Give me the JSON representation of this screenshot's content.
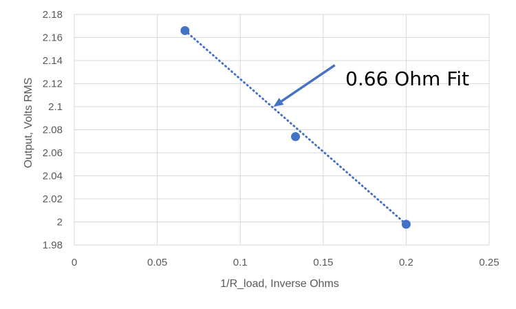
{
  "chart_data": {
    "type": "scatter",
    "xlabel": "1/R_load, Inverse Ohms",
    "ylabel": "Output, Volts RMS",
    "xlim": [
      0,
      0.25
    ],
    "ylim": [
      1.98,
      2.18
    ],
    "xticks": [
      "0",
      "0.05",
      "0.1",
      "0.15",
      "0.2",
      "0.25"
    ],
    "yticks": [
      "1.98",
      "2",
      "2.02",
      "2.04",
      "2.06",
      "2.08",
      "2.1",
      "2.12",
      "2.14",
      "2.16",
      "2.18"
    ],
    "grid": true,
    "series": [
      {
        "points": [
          {
            "x": 0.0667,
            "y": 2.166
          },
          {
            "x": 0.1333,
            "y": 2.074
          },
          {
            "x": 0.2,
            "y": 1.998
          }
        ]
      }
    ],
    "trendline": {
      "style": "dotted",
      "from": {
        "x": 0.0667,
        "y": 2.166
      },
      "to": {
        "x": 0.2,
        "y": 1.998
      }
    },
    "annotation": {
      "text": "0.66 Ohm Fit",
      "arrow_from": {
        "x": 0.157,
        "y": 2.136
      },
      "arrow_to": {
        "x": 0.12,
        "y": 2.1
      }
    },
    "colors": {
      "series": "#4472C4",
      "grid": "#D9D9D9",
      "text": "#595959"
    }
  }
}
